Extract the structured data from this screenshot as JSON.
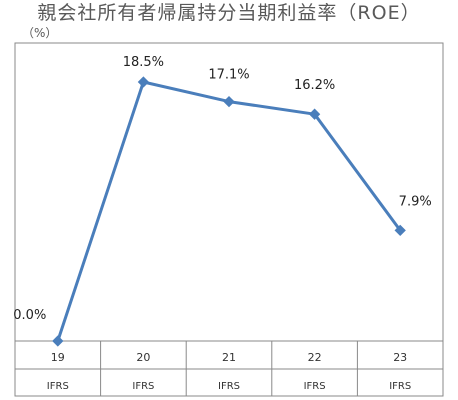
{
  "chart_data": {
    "type": "line",
    "title": "親会社所有者帰属持分当期利益率（ROE）",
    "unit_label": "（%）",
    "categories": [
      {
        "year": "19",
        "basis": "IFRS"
      },
      {
        "year": "20",
        "basis": "IFRS"
      },
      {
        "year": "21",
        "basis": "IFRS"
      },
      {
        "year": "22",
        "basis": "IFRS"
      },
      {
        "year": "23",
        "basis": "IFRS"
      }
    ],
    "series": [
      {
        "values": [
          0.0,
          18.5,
          17.1,
          16.2,
          7.9
        ],
        "data_labels": [
          "0.0%",
          "18.5%",
          "17.1%",
          "16.2%",
          "7.9%"
        ],
        "color": "#4a7ebb"
      }
    ],
    "ylim": [
      0,
      20
    ],
    "grid": false,
    "legend": "none"
  }
}
